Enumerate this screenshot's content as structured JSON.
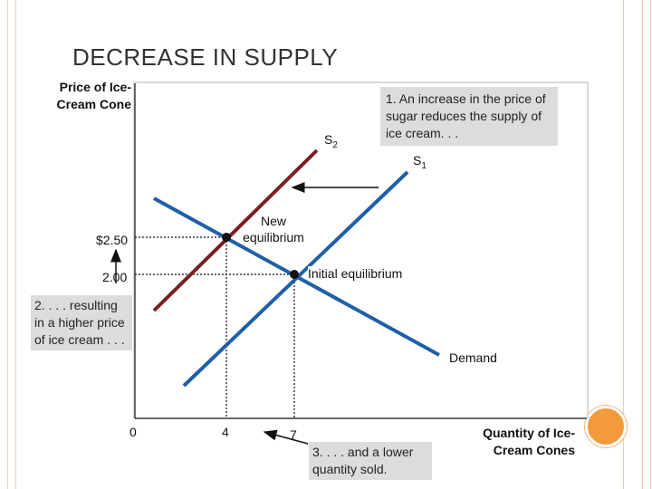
{
  "slide": {
    "title": "DECREASE IN SUPPLY"
  },
  "axes": {
    "y_label": "Price of Ice-Cream Cone",
    "x_label": "Quantity of Ice-Cream Cones"
  },
  "ticks": {
    "y": [
      "$2.50",
      "2.00"
    ],
    "x": [
      "0",
      "4",
      "7"
    ]
  },
  "curves": {
    "s1": "S1",
    "s2": "S2",
    "demand": "Demand"
  },
  "points": {
    "new": "New equilibrium",
    "initial": "Initial equilibrium"
  },
  "callouts": {
    "step1": "1. An increase in the price of sugar reduces the supply of ice cream. . .",
    "step2": "2. . . . resulting in a higher price of ice cream . . .",
    "step3": "3. . . . and a lower quantity sold."
  },
  "chart_data": {
    "type": "line",
    "title": "DECREASE IN SUPPLY",
    "xlabel": "Quantity of Ice-Cream Cones",
    "ylabel": "Price of Ice-Cream Cone",
    "series": [
      {
        "name": "S1",
        "color": "#1f5fa8"
      },
      {
        "name": "S2",
        "color": "#7a1f1f"
      },
      {
        "name": "Demand",
        "color": "#1f5fa8"
      }
    ],
    "equilibria": [
      {
        "name": "Initial equilibrium",
        "quantity": 7,
        "price": 2.0
      },
      {
        "name": "New equilibrium",
        "quantity": 4,
        "price": 2.5
      }
    ],
    "grid": false
  },
  "colors": {
    "supply_new": "#7a1f1f",
    "supply_old": "#1f5fa8",
    "demand": "#1f5fa8",
    "callout_bg": "#dcdcdc"
  }
}
